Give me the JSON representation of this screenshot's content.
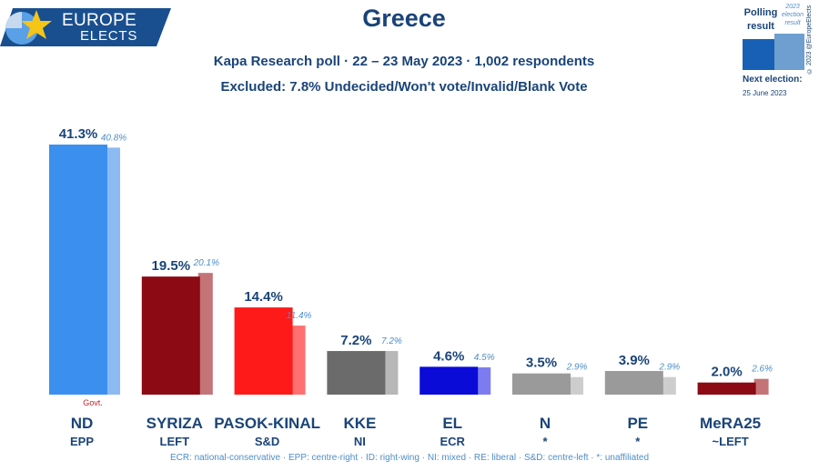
{
  "brand": {
    "line1": "EUROPE",
    "line2": "ELECTS"
  },
  "header": {
    "title": "Greece",
    "subtitle": "Kapa Research poll · 22 – 23 May 2023 · 1,002 respondents",
    "subtitle2": "Excluded: 7.8% Undecided/Won't vote/Invalid/Blank Vote"
  },
  "legend": {
    "poll_label": "Polling result",
    "result_label": "2023 election result",
    "copyright": "© 2023 @EuropeElects",
    "next_label": "Next election:",
    "next_date": "25 June 2023"
  },
  "chart_data": {
    "type": "bar",
    "categories": [
      "ND",
      "SYRIZA",
      "PASOK-KINAL",
      "KKE",
      "EL",
      "N",
      "PE",
      "MeRA25"
    ],
    "groups": [
      "EPP",
      "LEFT",
      "S&D",
      "NI",
      "ECR",
      "*",
      "*",
      "~LEFT"
    ],
    "series": [
      {
        "name": "Polling result",
        "values": [
          41.3,
          19.5,
          14.4,
          7.2,
          4.6,
          3.5,
          3.9,
          2.0
        ],
        "labels": [
          "41.3%",
          "19.5%",
          "14.4%",
          "7.2%",
          "4.6%",
          "3.5%",
          "3.9%",
          "2.0%"
        ]
      },
      {
        "name": "2023 election result",
        "values": [
          40.8,
          20.1,
          11.4,
          7.2,
          4.5,
          2.9,
          2.9,
          2.6
        ],
        "labels": [
          "40.8%",
          "20.1%",
          "11.4%",
          "7.2%",
          "4.5%",
          "2.9%",
          "2.9%",
          "2.6%"
        ]
      }
    ],
    "colors": [
      "#3b8fef",
      "#8b0a14",
      "#ff1a1a",
      "#6b6b6b",
      "#0b0bd8",
      "#9a9a9a",
      "#9a9a9a",
      "#8b0a14"
    ],
    "light_colors": [
      "#8cbbf3",
      "#c47377",
      "#ff7070",
      "#b7b7b7",
      "#7c7cf0",
      "#cdcdcd",
      "#cdcdcd",
      "#c47377"
    ],
    "annotation": {
      "text": "Govt.",
      "category": "ND"
    },
    "ylim": [
      0,
      41.3
    ]
  },
  "footer": "ECR: national-conservative · EPP: centre-right · ID: right-wing · NI: mixed · RE: liberal · S&D: centre-left · *: unaffiliated"
}
